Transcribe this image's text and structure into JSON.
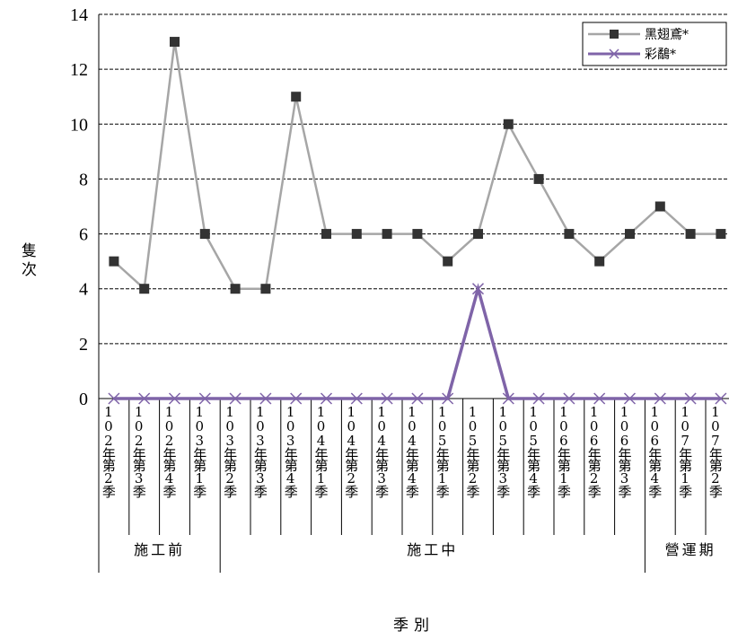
{
  "chart_data": {
    "type": "line",
    "xlabel": "季別",
    "ylabel": "隻次",
    "ylim": [
      0,
      14
    ],
    "yticks": [
      0,
      2,
      4,
      6,
      8,
      10,
      12,
      14
    ],
    "grid": true,
    "legend_position": "top-right",
    "categories": [
      "102年第2季",
      "102年第3季",
      "102年第4季",
      "103年第1季",
      "103年第2季",
      "103年第3季",
      "103年第4季",
      "104年第1季",
      "104年第2季",
      "104年第3季",
      "104年第4季",
      "105年第1季",
      "105年第2季",
      "105年第3季",
      "105年第4季",
      "106年第1季",
      "106年第2季",
      "106年第3季",
      "106年第4季",
      "107年第1季",
      "107年第2季"
    ],
    "phases": [
      {
        "label": "施工前",
        "start": 0,
        "end": 3
      },
      {
        "label": "施工中",
        "start": 4,
        "end": 17
      },
      {
        "label": "營運期",
        "start": 18,
        "end": 20
      }
    ],
    "series": [
      {
        "name": "黑翅鳶*",
        "color": "#a6a6a6",
        "marker": "square",
        "marker_color": "#333333",
        "values": [
          5,
          4,
          13,
          6,
          4,
          4,
          11,
          6,
          6,
          6,
          6,
          5,
          6,
          10,
          8,
          6,
          5,
          6,
          7,
          6,
          6
        ]
      },
      {
        "name": "彩鷸*",
        "color": "#7f64a8",
        "marker": "x",
        "values": [
          0,
          0,
          0,
          0,
          0,
          0,
          0,
          0,
          0,
          0,
          0,
          0,
          4,
          0,
          0,
          0,
          0,
          0,
          0,
          0,
          0
        ]
      }
    ]
  }
}
